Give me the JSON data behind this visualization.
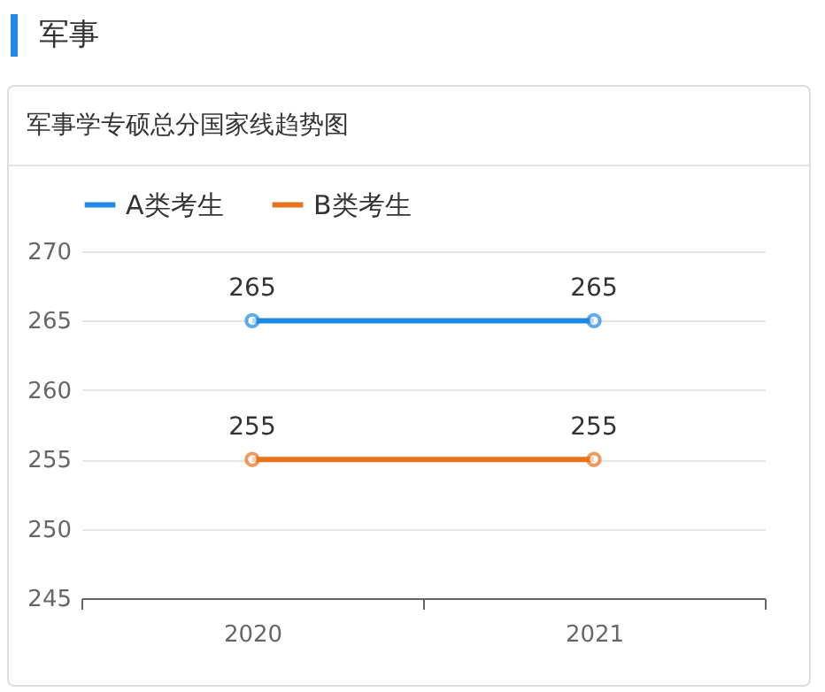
{
  "chart_data": {
    "type": "line",
    "title": "军事",
    "subtitle": "军事学专硕总分国家线趋势图",
    "categories": [
      "2020",
      "2021"
    ],
    "series": [
      {
        "name": "A类考生",
        "color": "#1e88e5",
        "values": [
          265,
          265
        ]
      },
      {
        "name": "B类考生",
        "color": "#e8711c",
        "values": [
          255,
          255
        ]
      }
    ],
    "ylim": [
      245,
      270
    ],
    "yticks": [
      245,
      250,
      255,
      260,
      265,
      270
    ],
    "grid": "y",
    "legend": "top",
    "marker": "circle",
    "line_style": "solid",
    "data_labels": true
  }
}
